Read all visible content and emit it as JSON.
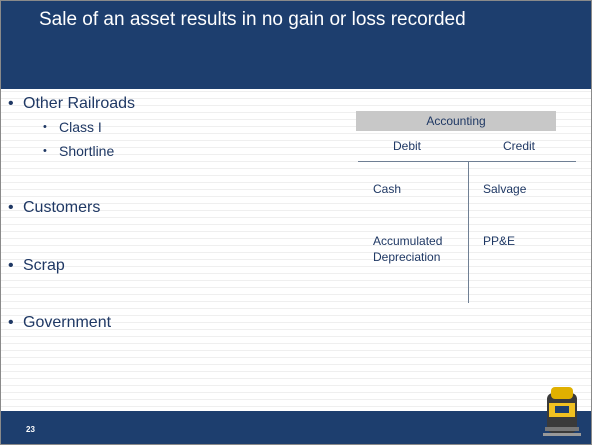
{
  "header": {
    "title": "Sale of an asset results in no gain or loss recorded"
  },
  "bullets": [
    {
      "text": "Other Railroads",
      "sub": [
        "Class I",
        "Shortline"
      ]
    },
    {
      "text": "Customers",
      "sub": []
    },
    {
      "text": "Scrap",
      "sub": []
    },
    {
      "text": "Government",
      "sub": []
    }
  ],
  "t_account": {
    "header": "Accounting",
    "debit_label": "Debit",
    "credit_label": "Credit",
    "debit_entries": [
      "Cash",
      "Accumulated Depreciation"
    ],
    "credit_entries": [
      "Salvage",
      "PP&E"
    ]
  },
  "footer": {
    "page_number": "23"
  }
}
